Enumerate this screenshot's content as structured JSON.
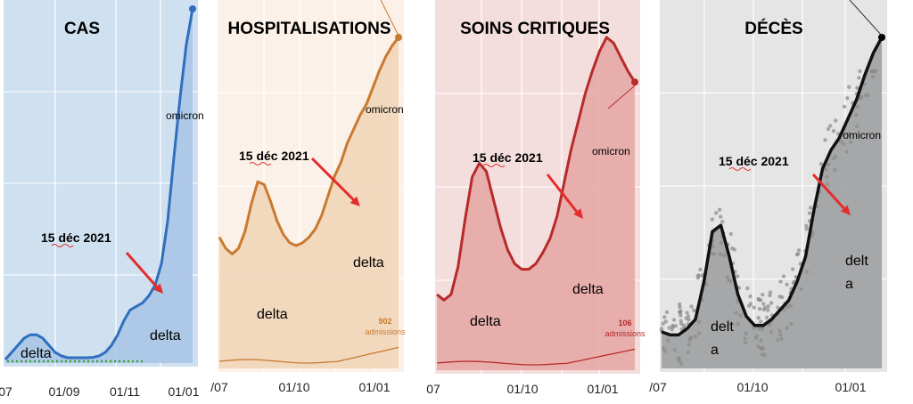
{
  "chart_data": [
    {
      "type": "area",
      "title": "CAS",
      "x_ticks": [
        "07",
        "01/09",
        "01/11",
        "01/01"
      ],
      "annotations": {
        "date": "15 déc 2021",
        "variant_1": "delta",
        "variant_2": "delta",
        "variant_3": "omicron"
      },
      "colors": {
        "line": "#2f6fbd",
        "fill": "#aac7e6",
        "plot_bg": "#cfe0f1"
      },
      "series": [
        {
          "values": [
            1,
            3,
            5,
            7,
            8,
            8,
            7,
            5,
            3,
            2,
            1.5,
            1.5,
            1.5,
            1.5,
            1.6,
            2,
            3,
            5,
            8,
            12,
            15,
            16,
            17,
            19,
            22,
            28,
            40,
            58,
            75,
            90,
            100
          ]
        }
      ]
    },
    {
      "type": "area",
      "title": "HOSPITALISATIONS",
      "x_ticks": [
        "/07",
        "01/10",
        "01/01"
      ],
      "annotations": {
        "date": "15 déc 2021",
        "variant_1": "delta",
        "variant_2": "delta",
        "variant_3": "omicron",
        "bottom_value": "902",
        "bottom_unit": "admissions"
      },
      "colors": {
        "line": "#c97a30",
        "fill": "#f1d5b8",
        "plot_bg": "#fbf1e8"
      },
      "series": [
        {
          "values": [
            28,
            24,
            22,
            24,
            30,
            40,
            48,
            47,
            41,
            34,
            29,
            26,
            25,
            26,
            28,
            31,
            36,
            43,
            50,
            55,
            62,
            67,
            72,
            76,
            82,
            88,
            93,
            97,
            100
          ]
        }
      ]
    },
    {
      "type": "area",
      "title": "SOINS CRITIQUES",
      "x_ticks": [
        "07",
        "01/10",
        "01/01"
      ],
      "annotations": {
        "date": "15 déc 2021",
        "variant_1": "delta",
        "variant_2": "delta",
        "variant_3": "omicron",
        "bottom_value": "106",
        "bottom_unit": "admissions"
      },
      "colors": {
        "line": "#b72b2a",
        "fill": "#e5a8a6",
        "plot_bg": "#f4dedd"
      },
      "series": [
        {
          "values": [
            8,
            6,
            8,
            18,
            35,
            50,
            55,
            52,
            42,
            32,
            24,
            19,
            17,
            17,
            19,
            23,
            28,
            36,
            48,
            60,
            70,
            80,
            88,
            95,
            100,
            98,
            93,
            88,
            84
          ]
        }
      ]
    },
    {
      "type": "area",
      "title": "DÉCÈS",
      "x_ticks": "/07|01/10|01/01",
      "annotations": {
        "date": "15 déc 2021",
        "variant_1": "delt",
        "variant_1b": "a",
        "variant_2": "delt",
        "variant_2b": "a",
        "variant_3": "omicron"
      },
      "colors": {
        "line": "#111111",
        "fill": "#9fa0a2",
        "plot_bg": "#e5e5e5",
        "dots": "#8a8a8a"
      },
      "series": [
        {
          "values": [
            6,
            5,
            5,
            7,
            10,
            22,
            38,
            40,
            30,
            18,
            11,
            8,
            8,
            10,
            13,
            16,
            22,
            30,
            45,
            58,
            64,
            68,
            74,
            80,
            88,
            95,
            100
          ]
        }
      ]
    }
  ]
}
